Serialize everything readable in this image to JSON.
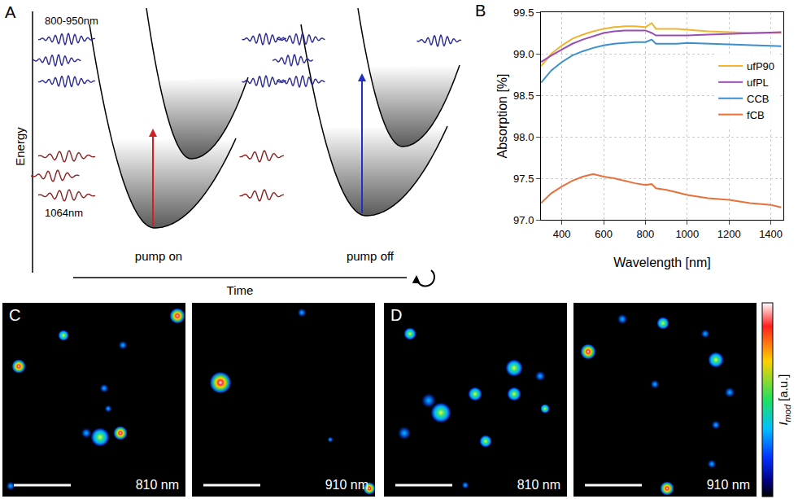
{
  "panel_a": {
    "letter": "A",
    "y_axis_label": "Energy",
    "x_axis_label": "Time",
    "probe_label": "800-950nm",
    "pump_label": "1064nm",
    "states": [
      "pump on",
      "pump off"
    ]
  },
  "chart_data": {
    "letter": "B",
    "type": "line",
    "x": [
      300,
      350,
      400,
      450,
      500,
      550,
      600,
      650,
      700,
      750,
      800,
      830,
      850,
      900,
      950,
      1000,
      1100,
      1200,
      1300,
      1400,
      1450
    ],
    "series": [
      {
        "name": "ufP90",
        "color": "#f0b530",
        "values": [
          98.85,
          99.0,
          99.1,
          99.18,
          99.23,
          99.27,
          99.3,
          99.32,
          99.33,
          99.33,
          99.32,
          99.37,
          99.3,
          99.3,
          99.3,
          99.29,
          99.27,
          99.26,
          99.25,
          99.25,
          99.25
        ]
      },
      {
        "name": "ufPL",
        "color": "#9b4db5",
        "values": [
          98.9,
          98.98,
          99.05,
          99.12,
          99.17,
          99.21,
          99.25,
          99.27,
          99.28,
          99.28,
          99.28,
          99.25,
          99.22,
          99.22,
          99.22,
          99.22,
          99.23,
          99.24,
          99.25,
          99.26,
          99.26
        ]
      },
      {
        "name": "CCB",
        "color": "#3a8fd0",
        "values": [
          98.65,
          98.8,
          98.9,
          98.98,
          99.03,
          99.07,
          99.1,
          99.12,
          99.13,
          99.14,
          99.14,
          99.17,
          99.12,
          99.12,
          99.12,
          99.13,
          99.12,
          99.11,
          99.1,
          99.09,
          99.09
        ]
      },
      {
        "name": "fCB",
        "color": "#e8703a",
        "values": [
          97.2,
          97.32,
          97.4,
          97.47,
          97.52,
          97.55,
          97.52,
          97.5,
          97.47,
          97.44,
          97.42,
          97.43,
          97.38,
          97.36,
          97.33,
          97.3,
          97.26,
          97.24,
          97.2,
          97.18,
          97.15
        ]
      }
    ],
    "xlabel": "Wavelength [nm]",
    "ylabel": "Absorption [%]",
    "xlim": [
      300,
      1460
    ],
    "ylim": [
      97.0,
      99.5
    ],
    "xticks": [
      400,
      600,
      800,
      1000,
      1200,
      1400
    ],
    "yticks": [
      {
        "value": 97,
        "label": "97.0"
      },
      97.5,
      {
        "value": 98,
        "label": "98.0"
      },
      98.5,
      {
        "value": 99,
        "label": "99.0"
      },
      99.5
    ],
    "grid": true,
    "legend": "upper right"
  },
  "panel_c": {
    "letter": "C",
    "images": [
      "810 nm",
      "910 nm"
    ]
  },
  "panel_d": {
    "letter": "D",
    "images": [
      "810 nm",
      "910 nm"
    ]
  },
  "colorbar": {
    "symbol": "I",
    "subscript": "mod",
    "unit": "[a.u.]"
  }
}
